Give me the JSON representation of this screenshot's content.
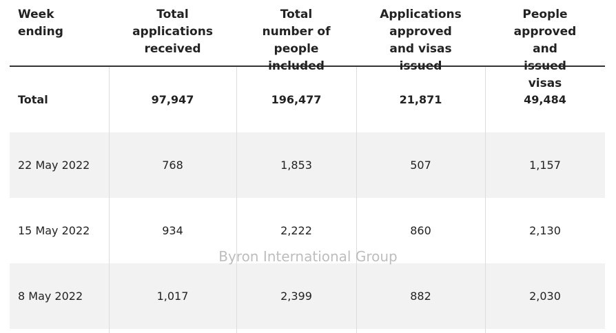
{
  "table": {
    "header": [
      "Week ending",
      "Total applications received",
      "Total number of people included",
      "Applications approved and visas issued",
      "People approved and issued visas"
    ],
    "rows": [
      [
        "Total",
        "97,947",
        "196,477",
        "21,871",
        "49,484"
      ],
      [
        "22 May 2022",
        "768",
        "1,853",
        "507",
        "1,157"
      ],
      [
        "15 May 2022",
        "934",
        "2,222",
        "860",
        "2,130"
      ],
      [
        "8 May 2022",
        "1,017",
        "2,399",
        "882",
        "2,030"
      ]
    ]
  },
  "watermark": "Byron International Group"
}
